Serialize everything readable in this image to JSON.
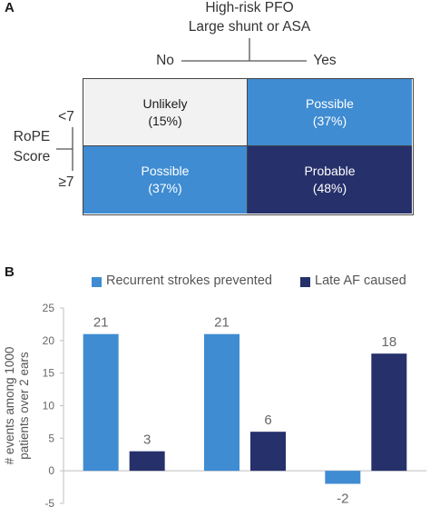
{
  "panel_a": {
    "label": "A",
    "header_line1": "High-risk PFO",
    "header_line2": "Large shunt or ASA",
    "col_no": "No",
    "col_yes": "Yes",
    "row_title_line1": "RoPE",
    "row_title_line2": "Score",
    "row_lt7": "<7",
    "row_ge7": "≥7",
    "cells": [
      {
        "label": "Unlikely",
        "value": "(15%)",
        "color": "#f2f2f2"
      },
      {
        "label": "Possible",
        "value": "(37%)",
        "color": "#3f8cd2"
      },
      {
        "label": "Possible",
        "value": "(37%)",
        "color": "#3f8cd2"
      },
      {
        "label": "Probable",
        "value": "(48%)",
        "color": "#26306b"
      }
    ]
  },
  "panel_b": {
    "label": "B",
    "legend": [
      {
        "name": "Recurrent strokes prevented",
        "color": "#3f8cd2"
      },
      {
        "name": "Late AF caused",
        "color": "#26306b"
      }
    ]
  },
  "chart_data": {
    "type": "bar",
    "categories": [
      "",
      "",
      ""
    ],
    "series": [
      {
        "name": "Recurrent strokes prevented",
        "values": [
          21,
          21,
          -2
        ],
        "color": "#3f8cd2"
      },
      {
        "name": "Late AF caused",
        "values": [
          3,
          6,
          18
        ],
        "color": "#26306b"
      }
    ],
    "data_labels": [
      [
        "21",
        "21",
        "-2"
      ],
      [
        "3",
        "6",
        "18"
      ]
    ],
    "title": "",
    "xlabel": "",
    "ylabel": "# events among 1000 patients over 2 ears",
    "ylabel_lines": [
      "# events among 1000",
      "patients over 2 ears"
    ],
    "ylim": [
      -5,
      25
    ],
    "yticks": [
      -5,
      0,
      5,
      10,
      15,
      20,
      25
    ],
    "grid": false,
    "legend": "top"
  }
}
